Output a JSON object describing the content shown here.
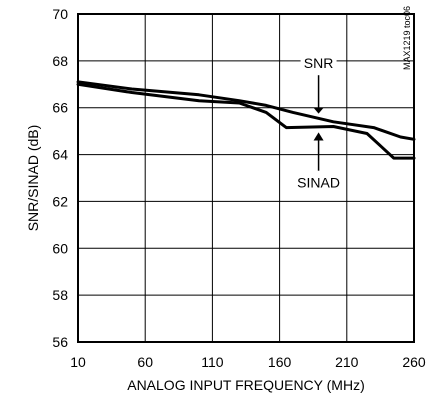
{
  "chart_data": {
    "type": "line",
    "xlabel": "ANALOG INPUT FREQUENCY (MHz)",
    "ylabel": "SNR/SINAD (dB)",
    "xlim": [
      10,
      260
    ],
    "ylim": [
      56,
      70
    ],
    "xticks": [
      10,
      60,
      110,
      160,
      210,
      260
    ],
    "yticks": [
      56,
      58,
      60,
      62,
      64,
      66,
      68,
      70
    ],
    "grid": true,
    "series": [
      {
        "name": "SNR",
        "x": [
          10,
          50,
          100,
          130,
          150,
          170,
          200,
          230,
          250,
          260
        ],
        "y": [
          67.1,
          66.8,
          66.55,
          66.3,
          66.1,
          65.8,
          65.4,
          65.15,
          64.75,
          64.65
        ]
      },
      {
        "name": "SINAD",
        "x": [
          10,
          50,
          100,
          130,
          150,
          165,
          200,
          225,
          245,
          260
        ],
        "y": [
          67.0,
          66.65,
          66.3,
          66.2,
          65.8,
          65.15,
          65.2,
          64.9,
          63.85,
          63.85
        ]
      }
    ],
    "annotations": [
      {
        "text": "SNR",
        "x": 189,
        "y": 67.9
      },
      {
        "text": "SINAD",
        "x": 189,
        "y": 62.8
      }
    ],
    "code_label": "MAX1219 toc06"
  }
}
